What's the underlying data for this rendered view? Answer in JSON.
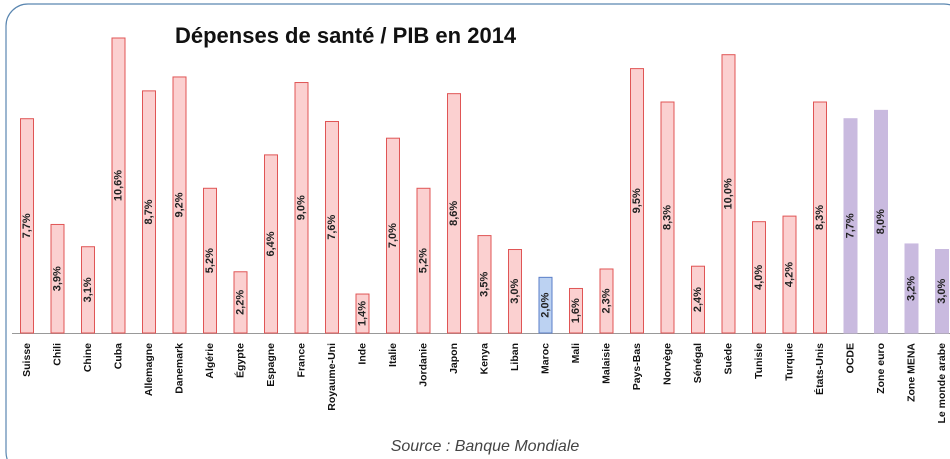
{
  "chart_data": {
    "type": "bar",
    "title": "Dépenses de santé / PIB en 2014",
    "source": "Source : Banque Mondiale",
    "categories": [
      "Suisse",
      "Chili",
      "Chine",
      "Cuba",
      "Allemagne",
      "Danemark",
      "Algérie",
      "Égypte",
      "Espagne",
      "France",
      "Royaume-Uni",
      "Inde",
      "Italie",
      "Jordanie",
      "Japon",
      "Kenya",
      "Liban",
      "Maroc",
      "Mali",
      "Malaisie",
      "Pays-Bas",
      "Norvège",
      "Sénégal",
      "Suède",
      "Tunisie",
      "Turquie",
      "États-Unis",
      "OCDE",
      "Zone euro",
      "Zone MENA",
      "Le monde arabe"
    ],
    "values": [
      7.7,
      3.9,
      3.1,
      10.6,
      8.7,
      9.2,
      5.2,
      2.2,
      6.4,
      9.0,
      7.6,
      1.4,
      7.0,
      5.2,
      8.6,
      3.5,
      3.0,
      2.0,
      1.6,
      2.3,
      9.5,
      8.3,
      2.4,
      10.0,
      4.0,
      4.2,
      8.3,
      7.7,
      8.0,
      3.2,
      3.0
    ],
    "value_labels": [
      "7,7%",
      "3,9%",
      "3,1%",
      "10,6%",
      "8,7%",
      "9,2%",
      "5,2%",
      "2,2%",
      "6,4%",
      "9,0%",
      "7,6%",
      "1,4%",
      "7,0%",
      "5,2%",
      "8,6%",
      "3,5%",
      "3,0%",
      "2,0%",
      "1,6%",
      "2,3%",
      "9,5%",
      "8,3%",
      "2,4%",
      "10,0%",
      "4,0%",
      "4,2%",
      "8,3%",
      "7,7%",
      "8,0%",
      "3,2%",
      "3,0%"
    ],
    "colors": [
      "#fbd0d0",
      "#fbd0d0",
      "#fbd0d0",
      "#fbd0d0",
      "#fbd0d0",
      "#fbd0d0",
      "#fbd0d0",
      "#fbd0d0",
      "#fbd0d0",
      "#fbd0d0",
      "#fbd0d0",
      "#fbd0d0",
      "#fbd0d0",
      "#fbd0d0",
      "#fbd0d0",
      "#fbd0d0",
      "#fbd0d0",
      "#bcd2f2",
      "#fbd0d0",
      "#fbd0d0",
      "#fbd0d0",
      "#fbd0d0",
      "#fbd0d0",
      "#fbd0d0",
      "#fbd0d0",
      "#fbd0d0",
      "#fbd0d0",
      "#c9badf",
      "#c9badf",
      "#c9badf",
      "#c9badf"
    ],
    "edge_colors": [
      "#e05555",
      "#e05555",
      "#e05555",
      "#e05555",
      "#e05555",
      "#e05555",
      "#e05555",
      "#e05555",
      "#e05555",
      "#e05555",
      "#e05555",
      "#e05555",
      "#e05555",
      "#e05555",
      "#e05555",
      "#e05555",
      "#e05555",
      "#5a7ec8",
      "#e05555",
      "#e05555",
      "#e05555",
      "#e05555",
      "#e05555",
      "#e05555",
      "#e05555",
      "#e05555",
      "#e05555",
      "#c9badf",
      "#c9badf",
      "#c9badf",
      "#c9badf"
    ]
  }
}
